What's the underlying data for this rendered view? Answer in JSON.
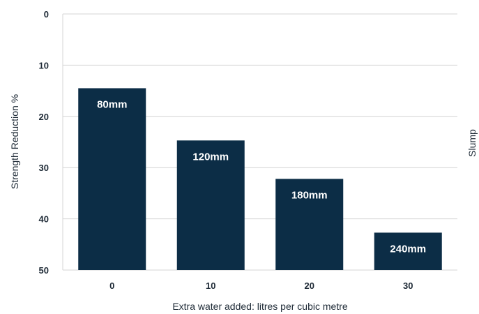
{
  "chart_data": {
    "type": "bar",
    "categories": [
      "0",
      "10",
      "20",
      "30"
    ],
    "values": [
      14.5,
      24.7,
      32.2,
      42.7
    ],
    "bar_labels": [
      "80mm",
      "120mm",
      "180mm",
      "240mm"
    ],
    "title": "",
    "xlabel": "Extra water added: litres per cubic metre",
    "ylabel": "Strength Reduction %",
    "y2label": "Slump",
    "ylim": [
      0,
      50
    ],
    "y_inverted": true,
    "y_ticks": [
      "0",
      "10",
      "20",
      "30",
      "40",
      "50"
    ],
    "grid": true,
    "colors": {
      "bar": "#0c2d46",
      "grid": "#d4d4d4",
      "text": "#1e2a36"
    }
  }
}
